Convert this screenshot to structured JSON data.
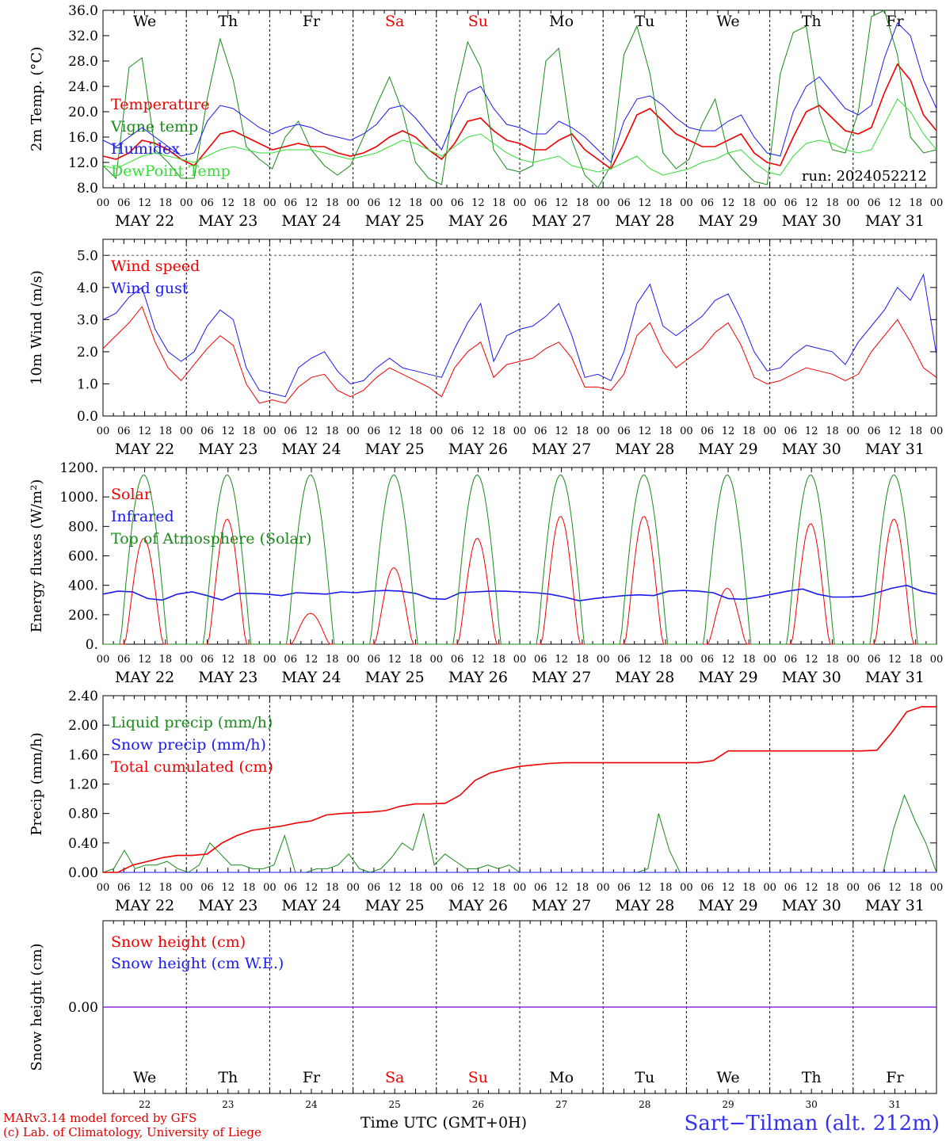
{
  "days": [
    "We",
    "Th",
    "Fr",
    "Sa",
    "Su",
    "Mo",
    "Tu",
    "We",
    "Th",
    "Fr"
  ],
  "weekend_days": [
    3,
    4
  ],
  "dates": [
    "MAY 22",
    "MAY 23",
    "MAY 24",
    "MAY 25",
    "MAY 26",
    "MAY 27",
    "MAY 28",
    "MAY 29",
    "MAY 30",
    "MAY 31"
  ],
  "hour_ticks": [
    "00",
    "06",
    "12",
    "18"
  ],
  "day_numbers": [
    "22",
    "23",
    "24",
    "25",
    "26",
    "27",
    "28",
    "29",
    "30",
    "31"
  ],
  "run_label": "run: 2024052212",
  "footer": {
    "model": "MARv3.14 model forced by GFS",
    "credit": "(c) Lab. of Climatology, University of Liege",
    "time_axis": "Time UTC (GMT+0H)",
    "station": "Sart−Tilman (alt. 212m)"
  },
  "colors": {
    "red": "#ee0000",
    "green": "#1a8a1a",
    "blue": "#1a1aee",
    "lightgreen": "#33dd33",
    "purple": "#8a2be2",
    "weekend": "#ee0000"
  },
  "chart_data": [
    {
      "type": "line",
      "ylabel": "2m Temp. (°C)",
      "ylim": [
        8,
        36
      ],
      "yticks": [
        "8.0",
        "12.0",
        "16.0",
        "20.0",
        "24.0",
        "28.0",
        "32.0",
        "36.0"
      ],
      "ytick_values": [
        8,
        12,
        16,
        20,
        24,
        28,
        32,
        36
      ],
      "series": [
        {
          "name": "Temperature",
          "color": "#ee0000",
          "y": [
            13.0,
            12.5,
            13.5,
            15.5,
            15.0,
            14.0,
            12.5,
            11.5,
            14.0,
            16.5,
            17.0,
            16.0,
            15.0,
            14.0,
            14.5,
            15.0,
            14.5,
            14.5,
            13.5,
            13.0,
            13.5,
            14.5,
            16.0,
            17.0,
            16.0,
            14.0,
            12.5,
            15.0,
            18.5,
            19.0,
            17.0,
            15.5,
            15.0,
            14.0,
            14.0,
            15.5,
            16.5,
            14.0,
            12.5,
            11.0,
            15.0,
            19.5,
            20.5,
            18.5,
            16.5,
            15.5,
            14.5,
            14.5,
            15.5,
            16.5,
            13.5,
            12.0,
            11.5,
            16.0,
            20.0,
            21.0,
            19.0,
            17.0,
            16.5,
            17.5,
            23.0,
            27.5,
            25.0,
            19.5,
            17.0
          ]
        },
        {
          "name": "Vigne temp",
          "color": "#1a8a1a",
          "y": [
            11.5,
            9.5,
            27.0,
            28.5,
            14.0,
            12.0,
            9.5,
            9.5,
            22.0,
            31.5,
            25.0,
            14.5,
            12.5,
            11.0,
            16.0,
            18.5,
            14.0,
            11.5,
            10.0,
            11.5,
            16.0,
            21.0,
            25.5,
            20.0,
            12.0,
            9.5,
            8.5,
            22.0,
            31.0,
            27.0,
            14.0,
            11.0,
            10.5,
            11.5,
            28.0,
            30.0,
            15.5,
            10.0,
            8.0,
            11.5,
            29.0,
            33.5,
            26.0,
            13.5,
            11.0,
            12.5,
            18.0,
            22.0,
            13.5,
            11.0,
            9.0,
            8.5,
            26.0,
            32.5,
            33.5,
            20.0,
            14.0,
            13.5,
            20.0,
            35.0,
            36.0,
            29.0,
            16.0,
            13.5,
            14.0
          ]
        },
        {
          "name": "Humidex",
          "color": "#1a1aee",
          "y": [
            15.5,
            14.5,
            16.0,
            17.5,
            16.0,
            14.5,
            13.0,
            13.5,
            18.5,
            21.0,
            20.5,
            19.0,
            17.5,
            16.5,
            17.5,
            18.0,
            17.5,
            16.5,
            16.0,
            15.5,
            16.5,
            18.0,
            20.5,
            21.0,
            19.0,
            16.5,
            14.0,
            19.0,
            23.0,
            24.0,
            20.5,
            18.0,
            17.5,
            16.5,
            16.5,
            18.5,
            17.5,
            16.0,
            14.0,
            12.0,
            18.5,
            22.0,
            22.5,
            21.0,
            19.0,
            17.5,
            17.0,
            17.0,
            18.5,
            19.5,
            16.0,
            13.5,
            13.0,
            20.0,
            24.0,
            25.5,
            23.0,
            20.5,
            19.5,
            21.0,
            28.5,
            34.0,
            32.0,
            25.0,
            20.5
          ]
        },
        {
          "name": "DewPoint Temp",
          "color": "#33dd33",
          "y": [
            11.5,
            11.0,
            12.0,
            13.0,
            13.5,
            13.0,
            12.5,
            12.0,
            13.0,
            14.0,
            14.5,
            14.0,
            13.5,
            13.5,
            14.0,
            14.0,
            14.0,
            13.5,
            13.0,
            12.5,
            13.0,
            13.5,
            14.5,
            15.5,
            15.0,
            14.0,
            13.0,
            14.5,
            16.0,
            16.5,
            15.0,
            13.5,
            12.5,
            12.0,
            12.5,
            13.0,
            11.5,
            11.0,
            10.5,
            11.0,
            12.0,
            13.0,
            11.0,
            10.0,
            10.5,
            11.0,
            12.0,
            12.5,
            13.5,
            14.0,
            12.0,
            10.5,
            10.0,
            13.0,
            15.0,
            15.5,
            15.0,
            14.0,
            13.5,
            14.0,
            18.0,
            22.0,
            20.0,
            16.5,
            14.0
          ]
        }
      ]
    },
    {
      "type": "line",
      "ylabel": "10m Wind (m/s)",
      "ylim": [
        0,
        5.5
      ],
      "yticks": [
        "0.0",
        "1.0",
        "2.0",
        "3.0",
        "4.0",
        "5.0"
      ],
      "ytick_values": [
        0,
        1,
        2,
        3,
        4,
        5
      ],
      "series": [
        {
          "name": "Wind speed",
          "color": "#ee0000",
          "y": [
            2.1,
            2.5,
            2.9,
            3.4,
            2.3,
            1.5,
            1.1,
            1.6,
            2.1,
            2.5,
            2.2,
            1.0,
            0.4,
            0.5,
            0.4,
            0.9,
            1.2,
            1.3,
            0.8,
            0.6,
            0.8,
            1.2,
            1.5,
            1.3,
            1.1,
            0.9,
            0.6,
            1.5,
            2.0,
            2.3,
            1.2,
            1.6,
            1.7,
            1.8,
            2.1,
            2.3,
            1.8,
            0.9,
            0.9,
            0.8,
            1.3,
            2.5,
            2.9,
            2.0,
            1.5,
            1.8,
            2.1,
            2.6,
            2.9,
            2.2,
            1.2,
            1.0,
            1.1,
            1.3,
            1.5,
            1.4,
            1.3,
            1.1,
            1.3,
            2.0,
            2.5,
            3.0,
            2.3,
            1.5,
            1.2
          ]
        },
        {
          "name": "Wind gust",
          "color": "#1a1aee",
          "y": [
            3.0,
            3.2,
            3.7,
            4.0,
            2.7,
            2.0,
            1.7,
            2.0,
            2.8,
            3.3,
            3.0,
            1.5,
            0.8,
            0.7,
            0.6,
            1.5,
            1.8,
            2.0,
            1.4,
            1.0,
            1.1,
            1.5,
            1.8,
            1.5,
            1.4,
            1.3,
            1.2,
            2.1,
            2.9,
            3.5,
            1.7,
            2.5,
            2.7,
            2.8,
            3.1,
            3.5,
            2.5,
            1.2,
            1.3,
            1.1,
            2.0,
            3.5,
            4.1,
            2.8,
            2.5,
            2.8,
            3.1,
            3.6,
            3.8,
            3.0,
            2.0,
            1.4,
            1.5,
            1.9,
            2.2,
            2.1,
            2.0,
            1.6,
            2.3,
            2.8,
            3.3,
            4.0,
            3.6,
            4.4,
            1.9
          ]
        }
      ]
    },
    {
      "type": "line",
      "ylabel": "Energy fluxes (W/m²)",
      "ylim": [
        0,
        1200
      ],
      "yticks": [
        "0.",
        "200.",
        "400.",
        "600.",
        "800.",
        "1000.",
        "1200."
      ],
      "ytick_values": [
        0,
        200,
        400,
        600,
        800,
        1000,
        1200
      ],
      "series": [
        {
          "name": "Solar",
          "color": "#ee0000",
          "peaks": [
            720,
            850,
            210,
            520,
            720,
            870,
            870,
            380,
            820,
            850
          ]
        },
        {
          "name": "Infrared",
          "color": "#1a1aee",
          "y": [
            340,
            360,
            355,
            310,
            300,
            340,
            355,
            330,
            300,
            345,
            345,
            340,
            330,
            350,
            345,
            340,
            355,
            350,
            360,
            365,
            360,
            345,
            310,
            305,
            350,
            355,
            360,
            360,
            355,
            350,
            340,
            320,
            295,
            310,
            320,
            330,
            335,
            330,
            360,
            365,
            360,
            350,
            310,
            305,
            320,
            340,
            360,
            375,
            340,
            320,
            320,
            325,
            350,
            380,
            400,
            360,
            340
          ]
        },
        {
          "name": "Top of Atmosphere (Solar)",
          "color": "#1a8a1a",
          "peak": 1150
        }
      ]
    },
    {
      "type": "line",
      "ylabel": "Precip (mm/h)",
      "ylim": [
        0,
        2.4
      ],
      "yticks": [
        "0.00",
        "0.40",
        "0.80",
        "1.20",
        "1.60",
        "2.00",
        "2.40"
      ],
      "ytick_values": [
        0,
        0.4,
        0.8,
        1.2,
        1.6,
        2.0,
        2.4
      ],
      "series": [
        {
          "name": "Liquid precip (mm/h)",
          "color": "#1a8a1a",
          "y": [
            0.0,
            0.05,
            0.3,
            0.05,
            0.1,
            0.1,
            0.15,
            0.05,
            0.0,
            0.1,
            0.4,
            0.25,
            0.1,
            0.1,
            0.05,
            0.05,
            0.1,
            0.5,
            0.0,
            0.0,
            0.05,
            0.05,
            0.1,
            0.25,
            0.05,
            0.0,
            0.05,
            0.2,
            0.4,
            0.3,
            0.8,
            0.1,
            0.25,
            0.15,
            0.05,
            0.05,
            0.1,
            0.05,
            0.1,
            0.0,
            0.0,
            0.0,
            0.0,
            0.0,
            0.0,
            0.0,
            0.0,
            0.0,
            0.0,
            0.0,
            0.0,
            0.05,
            0.8,
            0.3,
            0.0,
            0.0,
            0.0,
            0.0,
            0.0,
            0.0,
            0.0,
            0.0,
            0.0,
            0.0,
            0.0,
            0.0,
            0.0,
            0.0,
            0.0,
            0.0,
            0.0,
            0.0,
            0.0,
            0.0,
            0.6,
            1.05,
            0.7,
            0.4,
            0.0
          ]
        },
        {
          "name": "Snow precip (mm/h)",
          "color": "#1a1aee",
          "y": [
            0,
            0
          ]
        },
        {
          "name": "Total cumulated (cm)",
          "color": "#ee0000",
          "y": [
            0.0,
            0.0,
            0.1,
            0.15,
            0.2,
            0.23,
            0.23,
            0.25,
            0.4,
            0.5,
            0.57,
            0.6,
            0.63,
            0.67,
            0.7,
            0.78,
            0.8,
            0.81,
            0.82,
            0.84,
            0.9,
            0.93,
            0.93,
            0.94,
            1.05,
            1.25,
            1.35,
            1.4,
            1.44,
            1.46,
            1.48,
            1.49,
            1.49,
            1.49,
            1.49,
            1.49,
            1.49,
            1.49,
            1.49,
            1.49,
            1.49,
            1.52,
            1.65,
            1.65,
            1.65,
            1.65,
            1.65,
            1.65,
            1.65,
            1.65,
            1.65,
            1.65,
            1.66,
            1.9,
            2.18,
            2.25,
            2.25
          ]
        }
      ]
    },
    {
      "type": "line",
      "ylabel": "Snow height (cm)",
      "ylim": [
        -1,
        1
      ],
      "yticks": [
        "0.00"
      ],
      "ytick_values": [
        0
      ],
      "series": [
        {
          "name": "Snow height (cm)",
          "color": "#ee0000",
          "y": [
            0,
            0
          ]
        },
        {
          "name": "Snow height (cm W.E.)",
          "color": "#1a1aee",
          "y": [
            0,
            0
          ]
        }
      ]
    }
  ]
}
